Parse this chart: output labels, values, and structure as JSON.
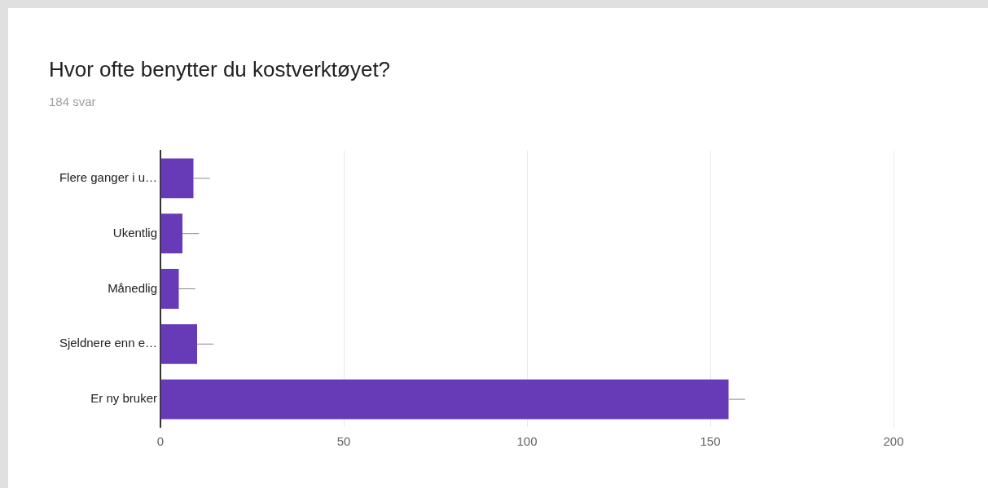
{
  "chart_data": {
    "type": "bar",
    "orientation": "horizontal",
    "title": "Hvor ofte benytter du kostverktøyet?",
    "subtitle": "184 svar",
    "categories": [
      "Flere ganger i u…",
      "Ukentlig",
      "Månedlig",
      "Sjeldnere enn e…",
      "Er ny bruker"
    ],
    "values": [
      9,
      6,
      5,
      10,
      155
    ],
    "color": "#673ab7",
    "errors": [
      [
        9,
        13.5
      ],
      [
        6,
        10.5
      ],
      [
        5,
        9.5
      ],
      [
        10,
        14.5
      ],
      [
        155,
        159.5
      ]
    ],
    "xlim": [
      0,
      200
    ],
    "xticks": [
      0,
      50,
      100,
      150,
      200
    ],
    "grid": "x"
  }
}
